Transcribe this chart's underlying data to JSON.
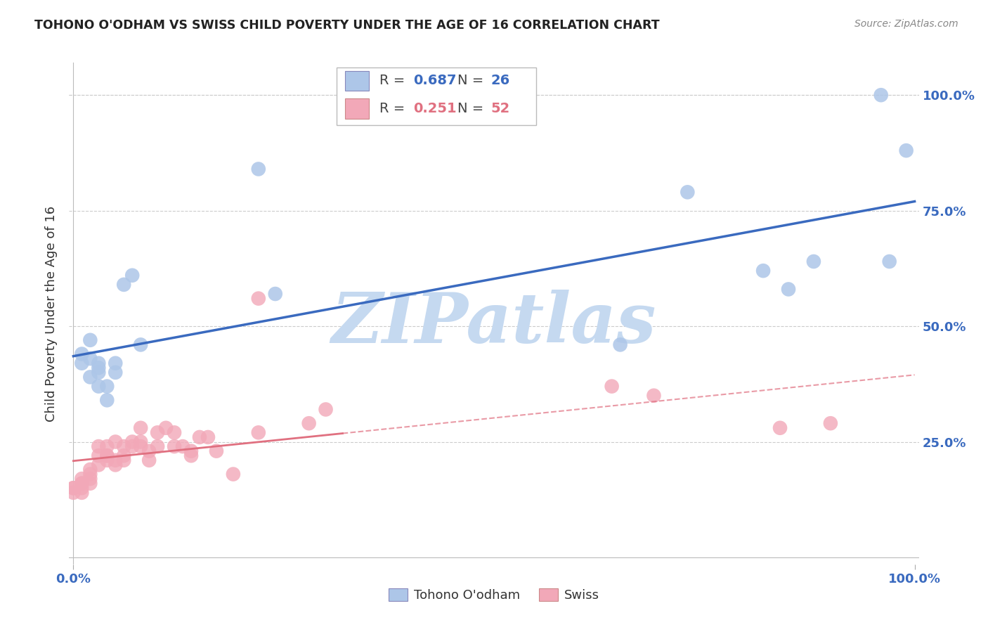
{
  "title": "TOHONO O'ODHAM VS SWISS CHILD POVERTY UNDER THE AGE OF 16 CORRELATION CHART",
  "source": "Source: ZipAtlas.com",
  "ylabel": "Child Poverty Under the Age of 16",
  "legend_blue_r": "0.687",
  "legend_blue_n": "26",
  "legend_pink_r": "0.251",
  "legend_pink_n": "52",
  "legend_blue_label": "Tohono O'odham",
  "legend_pink_label": "Swiss",
  "watermark": "ZIPatlas",
  "blue_x": [
    0.01,
    0.01,
    0.02,
    0.02,
    0.03,
    0.03,
    0.03,
    0.04,
    0.04,
    0.05,
    0.05,
    0.06,
    0.07,
    0.08,
    0.22,
    0.24,
    0.65,
    0.73,
    0.82,
    0.85,
    0.88,
    0.96,
    0.97,
    0.99,
    0.02,
    0.03
  ],
  "blue_y": [
    0.42,
    0.44,
    0.47,
    0.43,
    0.41,
    0.42,
    0.4,
    0.37,
    0.34,
    0.42,
    0.4,
    0.59,
    0.61,
    0.46,
    0.84,
    0.57,
    0.46,
    0.79,
    0.62,
    0.58,
    0.64,
    1.0,
    0.64,
    0.88,
    0.39,
    0.37
  ],
  "pink_x": [
    0.0,
    0.0,
    0.0,
    0.01,
    0.01,
    0.01,
    0.01,
    0.01,
    0.02,
    0.02,
    0.02,
    0.02,
    0.03,
    0.03,
    0.03,
    0.04,
    0.04,
    0.04,
    0.04,
    0.05,
    0.05,
    0.05,
    0.06,
    0.06,
    0.06,
    0.07,
    0.07,
    0.08,
    0.08,
    0.08,
    0.09,
    0.09,
    0.1,
    0.1,
    0.11,
    0.12,
    0.12,
    0.13,
    0.14,
    0.14,
    0.15,
    0.16,
    0.17,
    0.19,
    0.22,
    0.22,
    0.28,
    0.3,
    0.64,
    0.69,
    0.84,
    0.9
  ],
  "pink_y": [
    0.14,
    0.15,
    0.15,
    0.16,
    0.17,
    0.16,
    0.15,
    0.14,
    0.19,
    0.17,
    0.18,
    0.16,
    0.24,
    0.22,
    0.2,
    0.24,
    0.22,
    0.21,
    0.22,
    0.2,
    0.25,
    0.21,
    0.24,
    0.22,
    0.21,
    0.25,
    0.24,
    0.28,
    0.25,
    0.24,
    0.23,
    0.21,
    0.27,
    0.24,
    0.28,
    0.24,
    0.27,
    0.24,
    0.22,
    0.23,
    0.26,
    0.26,
    0.23,
    0.18,
    0.56,
    0.27,
    0.29,
    0.32,
    0.37,
    0.35,
    0.28,
    0.29
  ],
  "blue_line_color": "#3a6abf",
  "pink_line_color": "#e07080",
  "blue_dot_color": "#adc6e8",
  "pink_dot_color": "#f2a8b8",
  "grid_color": "#cccccc",
  "background_color": "#ffffff",
  "title_color": "#222222",
  "axis_label_color": "#3a6abf",
  "watermark_color": "#c5d9f0"
}
